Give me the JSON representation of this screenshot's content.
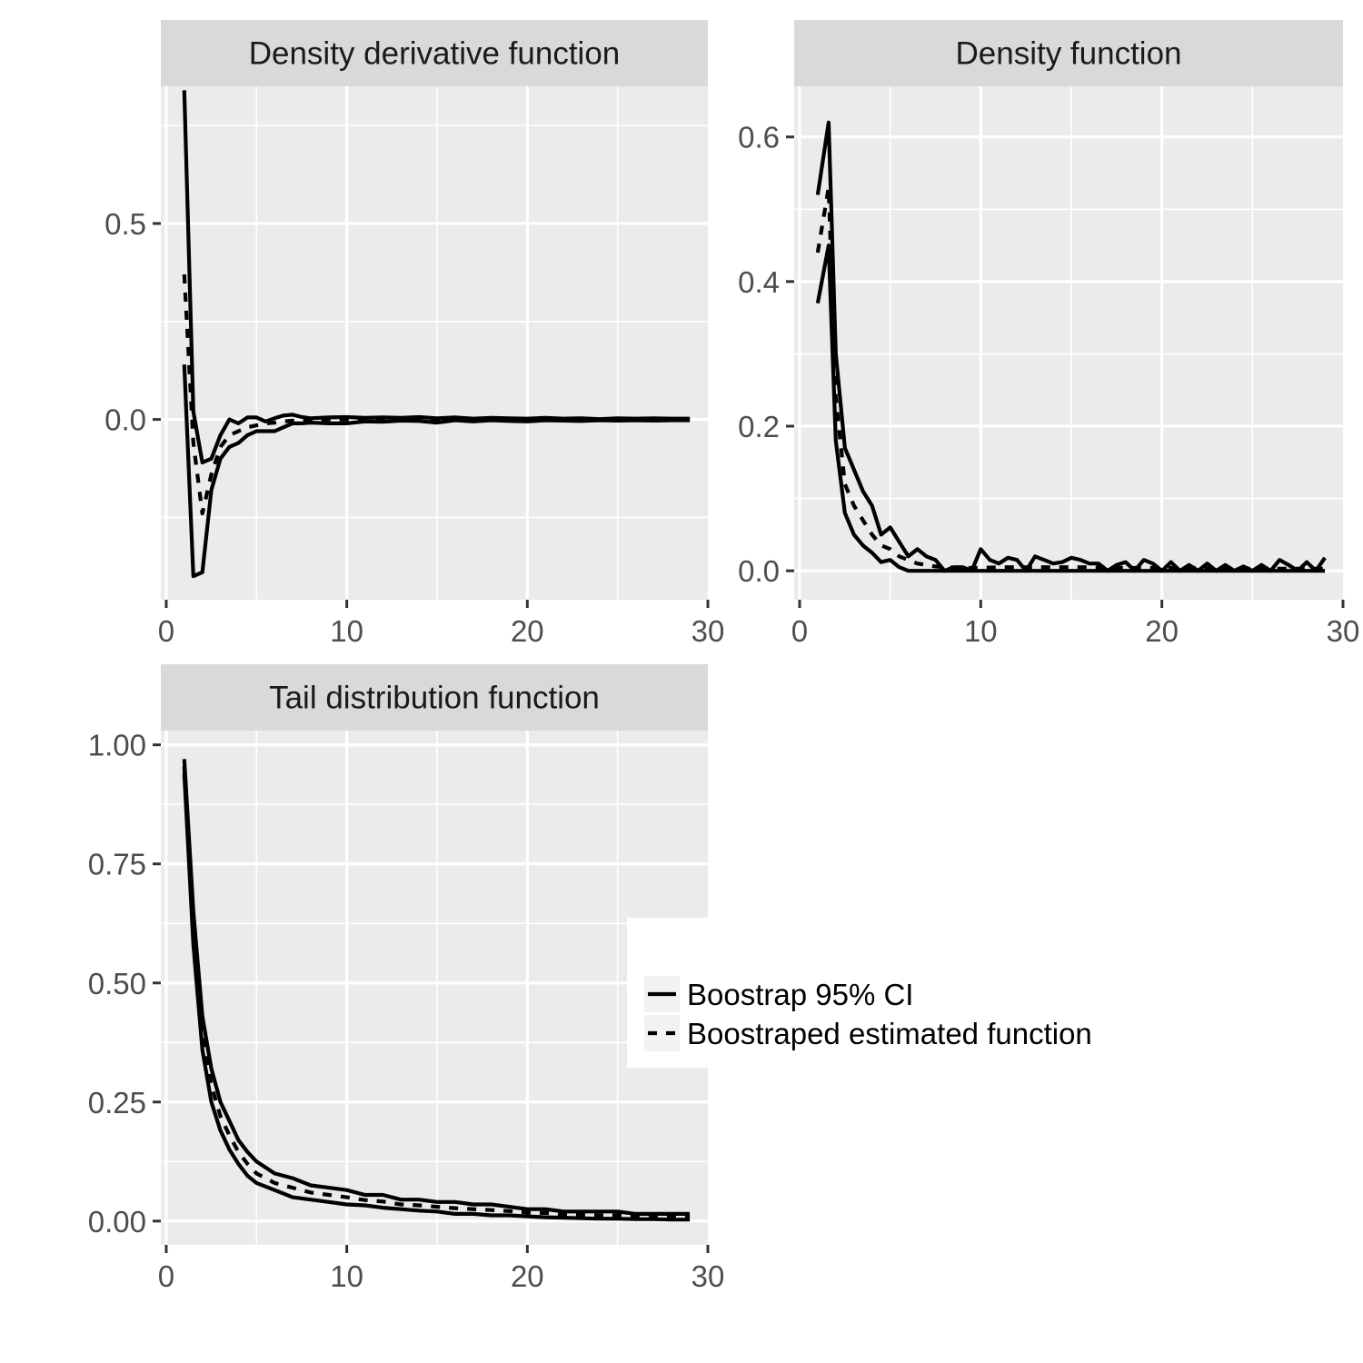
{
  "chart_data": [
    {
      "type": "line",
      "title": "Density derivative function",
      "xlim": [
        -0.3,
        30.0
      ],
      "ylim": [
        -0.46,
        0.85
      ],
      "x_ticks": [
        0,
        10,
        20,
        30
      ],
      "y_ticks": [
        0.0,
        0.5
      ],
      "y_tick_labels": [
        "0.0",
        "0.5"
      ],
      "y_minor_grid": [
        -0.25,
        0.25,
        0.75
      ],
      "grid": true,
      "series": [
        {
          "name": "Boostrap 95% CI",
          "style": "solid",
          "x": [
            1,
            1.5,
            2,
            2.5,
            3,
            3.5,
            4,
            4.5,
            5,
            5.5,
            6,
            6.5,
            7,
            7.5,
            8,
            9,
            10,
            11,
            12,
            13,
            14,
            15,
            16,
            17,
            18,
            19,
            20,
            21,
            22,
            23,
            24,
            25,
            26,
            27,
            28,
            29
          ],
          "y": [
            0.84,
            0.02,
            -0.11,
            -0.1,
            -0.04,
            0.0,
            -0.01,
            0.005,
            0.005,
            -0.005,
            0.003,
            0.01,
            0.012,
            0.006,
            0.003,
            0.005,
            0.006,
            0.004,
            0.005,
            0.004,
            0.006,
            0.003,
            0.005,
            0.002,
            0.004,
            0.003,
            0.002,
            0.004,
            0.002,
            0.003,
            0.001,
            0.003,
            0.002,
            0.003,
            0.002,
            0.002
          ]
        },
        {
          "name": "Boostrap 95% CI",
          "style": "solid",
          "x": [
            1,
            1.5,
            2,
            2.5,
            3,
            3.5,
            4,
            4.5,
            5,
            5.5,
            6,
            6.5,
            7,
            7.5,
            8,
            9,
            10,
            11,
            12,
            13,
            14,
            15,
            16,
            17,
            18,
            19,
            20,
            21,
            22,
            23,
            24,
            25,
            26,
            27,
            28,
            29
          ],
          "y": [
            0.14,
            -0.4,
            -0.39,
            -0.18,
            -0.1,
            -0.07,
            -0.06,
            -0.04,
            -0.03,
            -0.03,
            -0.03,
            -0.02,
            -0.01,
            -0.01,
            -0.008,
            -0.01,
            -0.01,
            -0.005,
            -0.006,
            -0.003,
            -0.004,
            -0.008,
            -0.002,
            -0.005,
            -0.002,
            -0.004,
            -0.005,
            -0.002,
            -0.003,
            -0.004,
            -0.002,
            -0.003,
            -0.002,
            -0.003,
            -0.002,
            -0.002
          ]
        },
        {
          "name": "Boostraped estimated function",
          "style": "dashed",
          "x": [
            1,
            1.5,
            2,
            2.5,
            3,
            3.5,
            4,
            4.5,
            5,
            5.5,
            6,
            6.5,
            7,
            7.5,
            8,
            9,
            10,
            11,
            12,
            13,
            14,
            15,
            16,
            17,
            18,
            19,
            20,
            21,
            22,
            23,
            24,
            25,
            26,
            27,
            28,
            29
          ],
          "y": [
            0.37,
            -0.06,
            -0.24,
            -0.14,
            -0.07,
            -0.04,
            -0.03,
            -0.02,
            -0.015,
            -0.01,
            -0.008,
            -0.005,
            -0.003,
            -0.002,
            0.0,
            0.0,
            0.0,
            0.0,
            0.0,
            0.0,
            0.0,
            0.0,
            0.0,
            0.0,
            0.0,
            0.0,
            0.0,
            0.0,
            0.0,
            0.0,
            0.0,
            0.0,
            0.0,
            0.0,
            0.0,
            0.0
          ]
        }
      ]
    },
    {
      "type": "line",
      "title": "Density function",
      "xlim": [
        -0.3,
        30.0
      ],
      "ylim": [
        -0.04,
        0.67
      ],
      "x_ticks": [
        0,
        10,
        20,
        30
      ],
      "y_ticks": [
        0.0,
        0.2,
        0.4,
        0.6
      ],
      "y_tick_labels": [
        "0.0",
        "0.2",
        "0.4",
        "0.6"
      ],
      "y_minor_grid": [
        0.1,
        0.3,
        0.5
      ],
      "grid": true,
      "series": [
        {
          "name": "Boostrap 95% CI",
          "style": "solid",
          "x": [
            1,
            1.6,
            2,
            2.5,
            3,
            3.5,
            4,
            4.5,
            5,
            5.5,
            6,
            6.5,
            7,
            7.5,
            8,
            8.5,
            9,
            9.5,
            10,
            10.5,
            11,
            11.5,
            12,
            12.5,
            13,
            13.5,
            14,
            14.5,
            15,
            15.5,
            16,
            16.5,
            17,
            17.5,
            18,
            18.5,
            19,
            19.5,
            20,
            20.5,
            21,
            21.5,
            22,
            22.5,
            23,
            23.5,
            24,
            24.5,
            25,
            25.5,
            26,
            26.5,
            27,
            27.5,
            28,
            28.5,
            29
          ],
          "y": [
            0.52,
            0.62,
            0.3,
            0.17,
            0.14,
            0.11,
            0.09,
            0.05,
            0.06,
            0.04,
            0.02,
            0.03,
            0.02,
            0.015,
            0.0,
            0.005,
            0.005,
            0.0,
            0.03,
            0.015,
            0.01,
            0.018,
            0.015,
            0.0,
            0.02,
            0.015,
            0.01,
            0.012,
            0.018,
            0.015,
            0.01,
            0.01,
            0.0,
            0.008,
            0.012,
            0.0,
            0.015,
            0.01,
            0.0,
            0.012,
            0.0,
            0.008,
            0.0,
            0.01,
            0.0,
            0.008,
            0.0,
            0.006,
            0.0,
            0.008,
            0.0,
            0.015,
            0.008,
            0.0,
            0.012,
            0.0,
            0.018
          ]
        },
        {
          "name": "Boostrap 95% CI",
          "style": "solid",
          "x": [
            1,
            1.6,
            2,
            2.5,
            3,
            3.5,
            4,
            4.5,
            5,
            5.5,
            6,
            6.5,
            7,
            7.5,
            8,
            9,
            10,
            11,
            12,
            13,
            14,
            15,
            16,
            17,
            18,
            19,
            20,
            21,
            22,
            23,
            24,
            25,
            26,
            27,
            28,
            29
          ],
          "y": [
            0.37,
            0.45,
            0.18,
            0.08,
            0.05,
            0.035,
            0.025,
            0.012,
            0.015,
            0.005,
            0.0,
            0.0,
            0.0,
            0.0,
            0.0,
            0.0,
            0.0,
            0.0,
            0.0,
            0.0,
            0.0,
            0.0,
            0.0,
            0.0,
            0.0,
            0.0,
            0.0,
            0.0,
            0.0,
            0.0,
            0.0,
            0.0,
            0.0,
            0.0,
            0.0,
            0.0
          ]
        },
        {
          "name": "Boostraped estimated function",
          "style": "dashed",
          "x": [
            1,
            1.6,
            2,
            2.5,
            3,
            3.5,
            4,
            4.5,
            5,
            5.5,
            6,
            6.5,
            7,
            7.5,
            8,
            9,
            10,
            11,
            12,
            13,
            14,
            15,
            16,
            17,
            18,
            19,
            20,
            21,
            22,
            23,
            24,
            25,
            26,
            27,
            28,
            29
          ],
          "y": [
            0.44,
            0.53,
            0.24,
            0.12,
            0.09,
            0.07,
            0.05,
            0.035,
            0.03,
            0.02,
            0.015,
            0.01,
            0.008,
            0.006,
            0.005,
            0.004,
            0.004,
            0.005,
            0.005,
            0.005,
            0.005,
            0.005,
            0.005,
            0.004,
            0.004,
            0.004,
            0.004,
            0.004,
            0.004,
            0.003,
            0.003,
            0.003,
            0.003,
            0.003,
            0.003,
            0.003
          ]
        }
      ]
    },
    {
      "type": "line",
      "title": "Tail distribution function",
      "xlim": [
        -0.3,
        30.0
      ],
      "ylim": [
        -0.05,
        1.03
      ],
      "x_ticks": [
        0,
        10,
        20,
        30
      ],
      "y_ticks": [
        0.0,
        0.25,
        0.5,
        0.75,
        1.0
      ],
      "y_tick_labels": [
        "0.00",
        "0.25",
        "0.50",
        "0.75",
        "1.00"
      ],
      "y_minor_grid": [
        0.125,
        0.375,
        0.625,
        0.875
      ],
      "grid": true,
      "series": [
        {
          "name": "Boostrap 95% CI",
          "style": "solid",
          "x": [
            1,
            1.5,
            2,
            2.5,
            3,
            3.5,
            4,
            4.5,
            5,
            6,
            7,
            8,
            9,
            10,
            11,
            12,
            13,
            14,
            15,
            16,
            17,
            18,
            19,
            20,
            21,
            22,
            23,
            24,
            25,
            26,
            27,
            28,
            29
          ],
          "y": [
            0.97,
            0.65,
            0.43,
            0.32,
            0.25,
            0.21,
            0.17,
            0.145,
            0.125,
            0.1,
            0.09,
            0.075,
            0.07,
            0.065,
            0.055,
            0.055,
            0.045,
            0.045,
            0.04,
            0.04,
            0.035,
            0.035,
            0.03,
            0.025,
            0.025,
            0.02,
            0.02,
            0.02,
            0.02,
            0.015,
            0.015,
            0.015,
            0.015
          ]
        },
        {
          "name": "Boostrap 95% CI",
          "style": "solid",
          "x": [
            1,
            1.5,
            2,
            2.5,
            3,
            3.5,
            4,
            4.5,
            5,
            6,
            7,
            8,
            9,
            10,
            11,
            12,
            13,
            14,
            15,
            16,
            17,
            18,
            19,
            20,
            21,
            22,
            23,
            24,
            25,
            26,
            27,
            28,
            29
          ],
          "y": [
            0.94,
            0.58,
            0.36,
            0.25,
            0.19,
            0.15,
            0.12,
            0.095,
            0.08,
            0.065,
            0.05,
            0.045,
            0.04,
            0.035,
            0.033,
            0.028,
            0.025,
            0.022,
            0.02,
            0.015,
            0.015,
            0.012,
            0.012,
            0.01,
            0.008,
            0.007,
            0.006,
            0.005,
            0.005,
            0.004,
            0.004,
            0.003,
            0.003
          ]
        },
        {
          "name": "Boostraped estimated function",
          "style": "dashed",
          "x": [
            1,
            1.5,
            2,
            2.5,
            3,
            3.5,
            4,
            4.5,
            5,
            6,
            7,
            8,
            9,
            10,
            11,
            12,
            13,
            14,
            15,
            16,
            17,
            18,
            19,
            20,
            21,
            22,
            23,
            24,
            25,
            26,
            27,
            28,
            29
          ],
          "y": [
            0.955,
            0.61,
            0.395,
            0.285,
            0.22,
            0.18,
            0.145,
            0.12,
            0.1,
            0.08,
            0.07,
            0.06,
            0.055,
            0.05,
            0.044,
            0.041,
            0.035,
            0.033,
            0.03,
            0.027,
            0.025,
            0.023,
            0.021,
            0.018,
            0.017,
            0.014,
            0.013,
            0.012,
            0.012,
            0.01,
            0.01,
            0.009,
            0.009
          ]
        }
      ]
    }
  ],
  "legend": {
    "entries": [
      {
        "label": "Boostrap 95% CI",
        "style": "solid"
      },
      {
        "label": "Boostraped estimated function",
        "style": "dashed"
      }
    ]
  },
  "colors": {
    "panel_bg": "#ebebeb",
    "strip_bg": "#d9d9d9",
    "grid": "#ffffff",
    "line": "#000000",
    "axis_text": "#4d4d4d",
    "tick": "#333333"
  }
}
